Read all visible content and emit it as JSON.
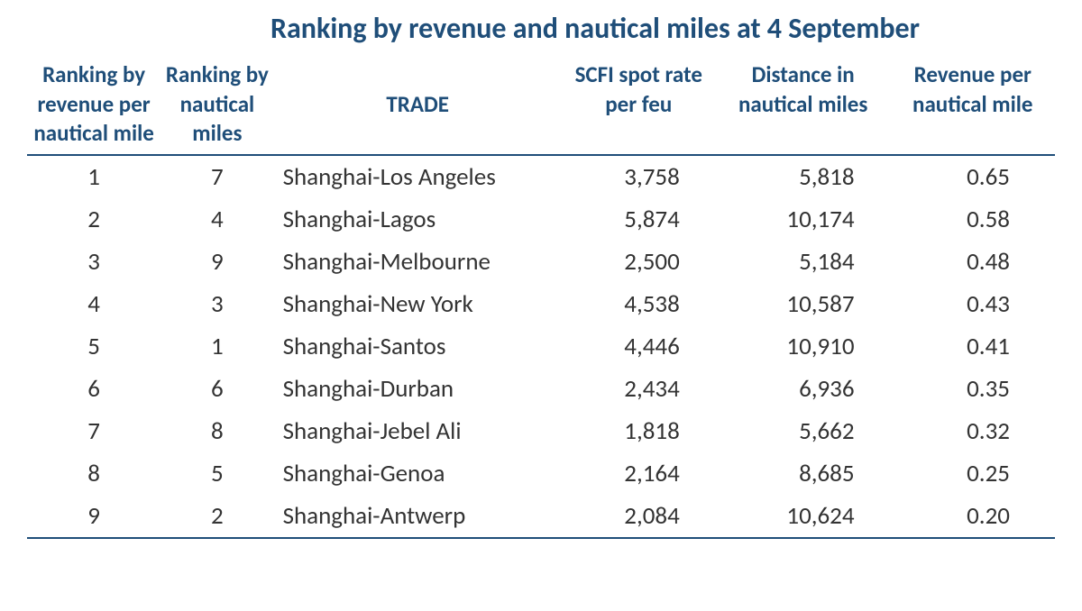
{
  "title": "Ranking by revenue and nautical miles at 4 September",
  "table": {
    "columns": [
      "Ranking by revenue per nautical mile",
      "Ranking by nautical miles",
      "TRADE",
      "SCFI spot rate per feu",
      "Distance in nautical miles",
      "Revenue per nautical mile"
    ],
    "column_widths": [
      "13%",
      "11%",
      "28%",
      "15%",
      "17%",
      "16%"
    ],
    "header_color": "#1f4e79",
    "header_fontsize": 25,
    "body_fontsize": 27,
    "body_color": "#333333",
    "border_color": "#1f4e79",
    "background_color": "#ffffff",
    "rows": [
      {
        "rank_rev": "1",
        "rank_miles": "7",
        "trade": "Shanghai-Los Angeles",
        "scfi": "3,758",
        "distance": "5,818",
        "rev_per_mile": "0.65"
      },
      {
        "rank_rev": "2",
        "rank_miles": "4",
        "trade": "Shanghai-Lagos",
        "scfi": "5,874",
        "distance": "10,174",
        "rev_per_mile": "0.58"
      },
      {
        "rank_rev": "3",
        "rank_miles": "9",
        "trade": "Shanghai-Melbourne",
        "scfi": "2,500",
        "distance": "5,184",
        "rev_per_mile": "0.48"
      },
      {
        "rank_rev": "4",
        "rank_miles": "3",
        "trade": "Shanghai-New York",
        "scfi": "4,538",
        "distance": "10,587",
        "rev_per_mile": "0.43"
      },
      {
        "rank_rev": "5",
        "rank_miles": "1",
        "trade": "Shanghai-Santos",
        "scfi": "4,446",
        "distance": "10,910",
        "rev_per_mile": "0.41"
      },
      {
        "rank_rev": "6",
        "rank_miles": "6",
        "trade": "Shanghai-Durban",
        "scfi": "2,434",
        "distance": "6,936",
        "rev_per_mile": "0.35"
      },
      {
        "rank_rev": "7",
        "rank_miles": "8",
        "trade": "Shanghai-Jebel Ali",
        "scfi": "1,818",
        "distance": "5,662",
        "rev_per_mile": "0.32"
      },
      {
        "rank_rev": "8",
        "rank_miles": "5",
        "trade": "Shanghai-Genoa",
        "scfi": "2,164",
        "distance": "8,685",
        "rev_per_mile": "0.25"
      },
      {
        "rank_rev": "9",
        "rank_miles": "2",
        "trade": "Shanghai-Antwerp",
        "scfi": "2,084",
        "distance": "10,624",
        "rev_per_mile": "0.20"
      }
    ]
  }
}
